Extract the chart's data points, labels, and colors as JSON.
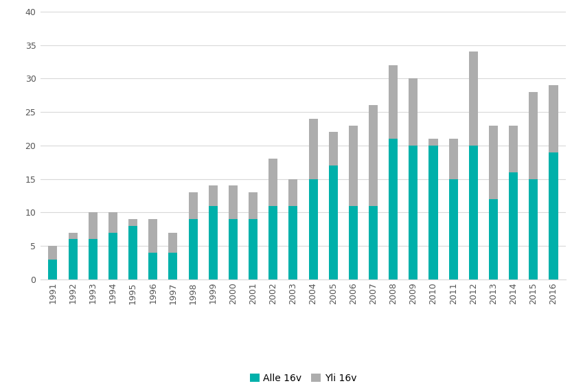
{
  "years": [
    1991,
    1992,
    1993,
    1994,
    1995,
    1996,
    1997,
    1998,
    1999,
    2000,
    2001,
    2002,
    2003,
    2004,
    2005,
    2006,
    2007,
    2008,
    2009,
    2010,
    2011,
    2012,
    2013,
    2014,
    2015,
    2016
  ],
  "alle16": [
    3,
    6,
    6,
    7,
    8,
    4,
    4,
    9,
    11,
    9,
    9,
    11,
    11,
    15,
    17,
    11,
    11,
    21,
    20,
    20,
    15,
    20,
    12,
    16,
    15,
    19
  ],
  "yli16": [
    2,
    1,
    4,
    3,
    1,
    5,
    3,
    4,
    3,
    5,
    4,
    7,
    4,
    9,
    5,
    12,
    15,
    11,
    10,
    1,
    6,
    14,
    11,
    7,
    13,
    10
  ],
  "color_alle16": "#00B0AA",
  "color_yli16": "#ADADAD",
  "ylim": [
    0,
    40
  ],
  "yticks": [
    0,
    5,
    10,
    15,
    20,
    25,
    30,
    35,
    40
  ],
  "legend_alle16": "Alle 16v",
  "legend_yli16": "Yli 16v",
  "background_color": "#ffffff",
  "grid_color": "#d8d8d8"
}
